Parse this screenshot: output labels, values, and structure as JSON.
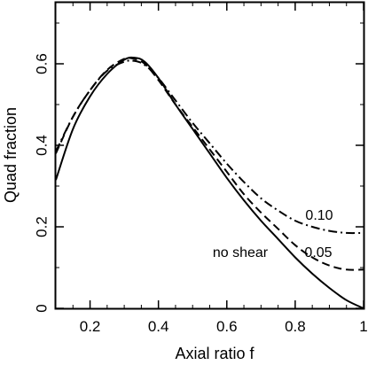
{
  "chart_data": {
    "type": "line",
    "title": "",
    "xlabel": "Axial ratio f",
    "ylabel": "Quad fraction",
    "xlim": [
      0.1,
      1.0
    ],
    "ylim": [
      0,
      0.75
    ],
    "xticks": [
      0.2,
      0.4,
      0.6,
      0.8,
      1
    ],
    "xtick_labels": [
      "0.2",
      "0.4",
      "0.6",
      "0.8",
      "1"
    ],
    "yticks": [
      0,
      0.2,
      0.4,
      0.6
    ],
    "ytick_labels": [
      "0",
      "0.2",
      "0.4",
      "0.6"
    ],
    "grid": false,
    "series": [
      {
        "name": "no shear",
        "style": "solid",
        "x": [
          0.1,
          0.15,
          0.2,
          0.25,
          0.3,
          0.33,
          0.36,
          0.4,
          0.45,
          0.5,
          0.55,
          0.6,
          0.65,
          0.7,
          0.75,
          0.8,
          0.85,
          0.9,
          0.95,
          1.0
        ],
        "y": [
          0.315,
          0.44,
          0.52,
          0.575,
          0.61,
          0.615,
          0.605,
          0.565,
          0.5,
          0.44,
          0.38,
          0.32,
          0.265,
          0.215,
          0.17,
          0.125,
          0.085,
          0.05,
          0.02,
          0.0
        ]
      },
      {
        "name": "0.05",
        "style": "dashed",
        "x": [
          0.1,
          0.15,
          0.2,
          0.25,
          0.3,
          0.33,
          0.36,
          0.4,
          0.45,
          0.5,
          0.55,
          0.6,
          0.65,
          0.7,
          0.75,
          0.8,
          0.85,
          0.9,
          0.95,
          1.0
        ],
        "y": [
          0.38,
          0.47,
          0.535,
          0.585,
          0.612,
          0.612,
          0.6,
          0.56,
          0.5,
          0.445,
          0.39,
          0.335,
          0.28,
          0.235,
          0.195,
          0.155,
          0.125,
          0.105,
          0.095,
          0.095
        ]
      },
      {
        "name": "0.10",
        "style": "dashdot",
        "x": [
          0.1,
          0.15,
          0.2,
          0.25,
          0.3,
          0.33,
          0.36,
          0.4,
          0.45,
          0.5,
          0.55,
          0.6,
          0.65,
          0.7,
          0.75,
          0.8,
          0.85,
          0.9,
          0.95,
          1.0
        ],
        "y": [
          0.385,
          0.47,
          0.535,
          0.583,
          0.605,
          0.607,
          0.597,
          0.565,
          0.51,
          0.455,
          0.405,
          0.355,
          0.31,
          0.27,
          0.24,
          0.215,
          0.2,
          0.19,
          0.185,
          0.185
        ]
      }
    ],
    "annotations": [
      "0.10",
      "0.05",
      "no shear"
    ]
  }
}
